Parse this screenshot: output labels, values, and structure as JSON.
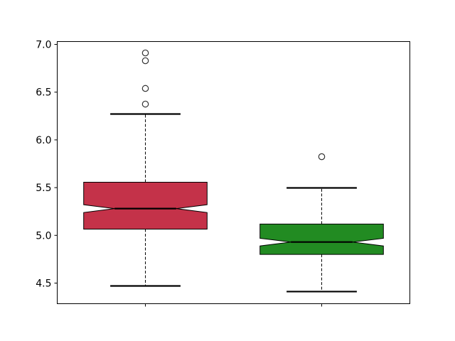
{
  "chart_data": {
    "type": "boxplot",
    "notched": true,
    "title": "",
    "xlabel": "",
    "ylabel": "",
    "xlim": [
      0.5,
      2.5
    ],
    "ylim": [
      4.284,
      7.03
    ],
    "grid": false,
    "yticks": [
      4.5,
      5.0,
      5.5,
      6.0,
      6.5,
      7.0
    ],
    "ytick_labels": [
      "4.5",
      "5.0",
      "5.5",
      "6.0",
      "6.5",
      "7.0"
    ],
    "xticks": [
      1,
      2
    ],
    "xtick_labels": [
      "",
      ""
    ],
    "boxes": [
      {
        "position": 1,
        "color": "#c43249",
        "whisker_low": 4.47,
        "q1": 5.065,
        "median": 5.28,
        "q3": 5.557,
        "whisker_high": 6.271,
        "notch_low": 5.239,
        "notch_high": 5.321,
        "outliers": [
          6.375,
          6.539,
          6.829,
          6.911
        ]
      },
      {
        "position": 2,
        "color": "#228b22",
        "whisker_low": 4.411,
        "q1": 4.8,
        "median": 4.93,
        "q3": 5.118,
        "whisker_high": 5.497,
        "notch_low": 4.889,
        "notch_high": 4.969,
        "outliers": [
          5.824
        ]
      }
    ]
  }
}
